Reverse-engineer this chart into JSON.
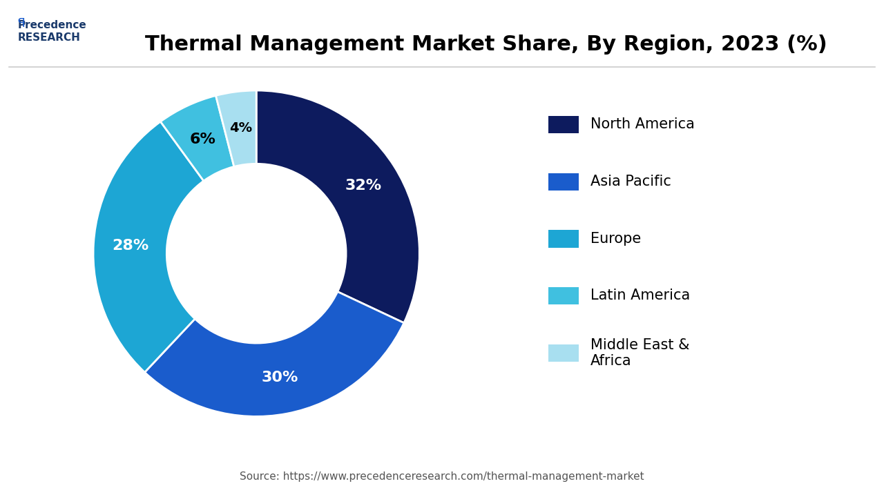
{
  "title": "Thermal Management Market Share, By Region, 2023 (%)",
  "segments": [
    {
      "label": "North America",
      "value": 32,
      "color": "#0d1b5e",
      "text_color": "white"
    },
    {
      "label": "Asia Pacific",
      "value": 30,
      "color": "#1a5ccc",
      "text_color": "white"
    },
    {
      "label": "Europe",
      "value": 28,
      "color": "#1da6d4",
      "text_color": "white"
    },
    {
      "label": "Latin America",
      "value": 6,
      "color": "#40c0e0",
      "text_color": "black"
    },
    {
      "label": "Middle East &\nAfrica",
      "value": 4,
      "color": "#a8dff0",
      "text_color": "black"
    }
  ],
  "source_text": "Source: https://www.precedenceresearch.com/thermal-management-market",
  "background_color": "#ffffff",
  "title_fontsize": 22,
  "label_fontsize": 16,
  "legend_fontsize": 15,
  "source_fontsize": 11,
  "donut_width": 0.45,
  "start_angle": 90
}
